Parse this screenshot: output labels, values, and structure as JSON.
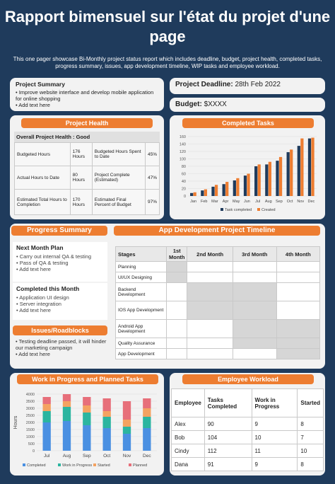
{
  "header": {
    "title": "Rapport bimensuel sur l'état du projet d'une page",
    "subtitle": "This one pager showcase Bi-Monthly project status report which includes deadline, budget, project health, completed tasks, progress summary, issues, app development timeline, WIP tasks and employee workload."
  },
  "summary": {
    "heading": "Project Summary",
    "items": [
      "Improve website interface and develop mobile application for online shopping",
      "Add text here"
    ]
  },
  "deadline": {
    "label": "Project Deadline:",
    "value": "28th Feb 2022"
  },
  "budget": {
    "label": "Budget:",
    "value": "$XXXX"
  },
  "health": {
    "heading": "Project Health",
    "overall": "Overall Project Health : Good",
    "rows": [
      [
        "Budgeted Hours",
        "176 Hours",
        "Budgeted Hours Spent to Date",
        "45%"
      ],
      [
        "Actual Hours to Date",
        "80 Hours",
        "Project Complete (Estimated)",
        "47%"
      ],
      [
        "Estimated Total Hours to Completion",
        "170 Hours",
        "Estimated Final Percent of Budget",
        "97%"
      ]
    ]
  },
  "completed_tasks": {
    "heading": "Completed Tasks",
    "legend": [
      "Task completed",
      "Created"
    ],
    "colors": {
      "completed": "#1f3b5c",
      "created": "#ed7d31"
    }
  },
  "progress": {
    "heading": "Progress Summary",
    "next_heading": "Next Month Plan",
    "next_items": [
      "Carry out internal QA & testing",
      "Pass of QA & testing",
      "Add text here"
    ],
    "done_heading": "Completed this Month",
    "done_items": [
      "Application UI design",
      "Server integration",
      "Add text here"
    ],
    "issues_heading": "Issues/Roadblocks",
    "issues_items": [
      "Testing deadline passed, it will hinder our marketing campaign",
      "Add text here"
    ]
  },
  "timeline": {
    "heading": "App Development Project Timeline",
    "columns": [
      "Stages",
      "1st Month",
      "2nd Month",
      "3rd Month",
      "4th Month"
    ],
    "rows": [
      "Planning",
      "UI/UX Designing",
      "Backend Development",
      "IOS App Development",
      "Android App Development",
      "Quality Assurance",
      "App Development"
    ]
  },
  "wip": {
    "heading": "Work in Progress and Planned Tasks",
    "ylabel": "Hours",
    "legend": [
      "Completed",
      "Work in Progress",
      "Started",
      "Planned"
    ],
    "colors": [
      "#4a90e2",
      "#2bb5a0",
      "#f4a261",
      "#e76f7a"
    ]
  },
  "workload": {
    "heading": "Employee Workload",
    "columns": [
      "Employee",
      "Tasks Completed",
      "Work in Progress",
      "Started"
    ],
    "rows": [
      [
        "Alex",
        "90",
        "9",
        "8"
      ],
      [
        "Bob",
        "104",
        "10",
        "7"
      ],
      [
        "Cindy",
        "112",
        "11",
        "10"
      ],
      [
        "Dana",
        "91",
        "9",
        "8"
      ]
    ]
  },
  "chart_data": [
    {
      "type": "bar",
      "title": "Completed Tasks",
      "categories": [
        "Jan",
        "Feb",
        "Mar",
        "Apr",
        "May",
        "Jun",
        "Jul",
        "Aug",
        "Sep",
        "Oct",
        "Nov",
        "Dec"
      ],
      "series": [
        {
          "name": "Task completed",
          "values": [
            8,
            15,
            25,
            32,
            42,
            55,
            80,
            85,
            95,
            118,
            135,
            155
          ]
        },
        {
          "name": "Created",
          "values": [
            10,
            18,
            30,
            38,
            48,
            60,
            85,
            92,
            105,
            125,
            155,
            157
          ]
        }
      ],
      "ylim": [
        0,
        160
      ],
      "yticks": [
        "0",
        "20",
        "40",
        "60",
        "80",
        "100",
        "120",
        "140",
        "160"
      ]
    },
    {
      "type": "bar",
      "title": "Work in Progress and Planned Tasks",
      "categories": [
        "Jul",
        "Aug",
        "Sep",
        "Oct",
        "Nov",
        "Dec"
      ],
      "series": [
        {
          "name": "Completed",
          "values": [
            2000,
            2100,
            1800,
            1600,
            1200,
            1600
          ]
        },
        {
          "name": "Work in Progress",
          "values": [
            800,
            1000,
            900,
            800,
            500,
            800
          ]
        },
        {
          "name": "Started",
          "values": [
            500,
            400,
            500,
            400,
            500,
            600
          ]
        },
        {
          "name": "Planned",
          "values": [
            500,
            500,
            600,
            900,
            1300,
            700
          ]
        }
      ],
      "ylim": [
        0,
        4000
      ],
      "yticks": [
        "0",
        "500",
        "1000",
        "1500",
        "2000",
        "2500",
        "3000",
        "3500",
        "4000"
      ],
      "ylabel": "Hours"
    }
  ]
}
